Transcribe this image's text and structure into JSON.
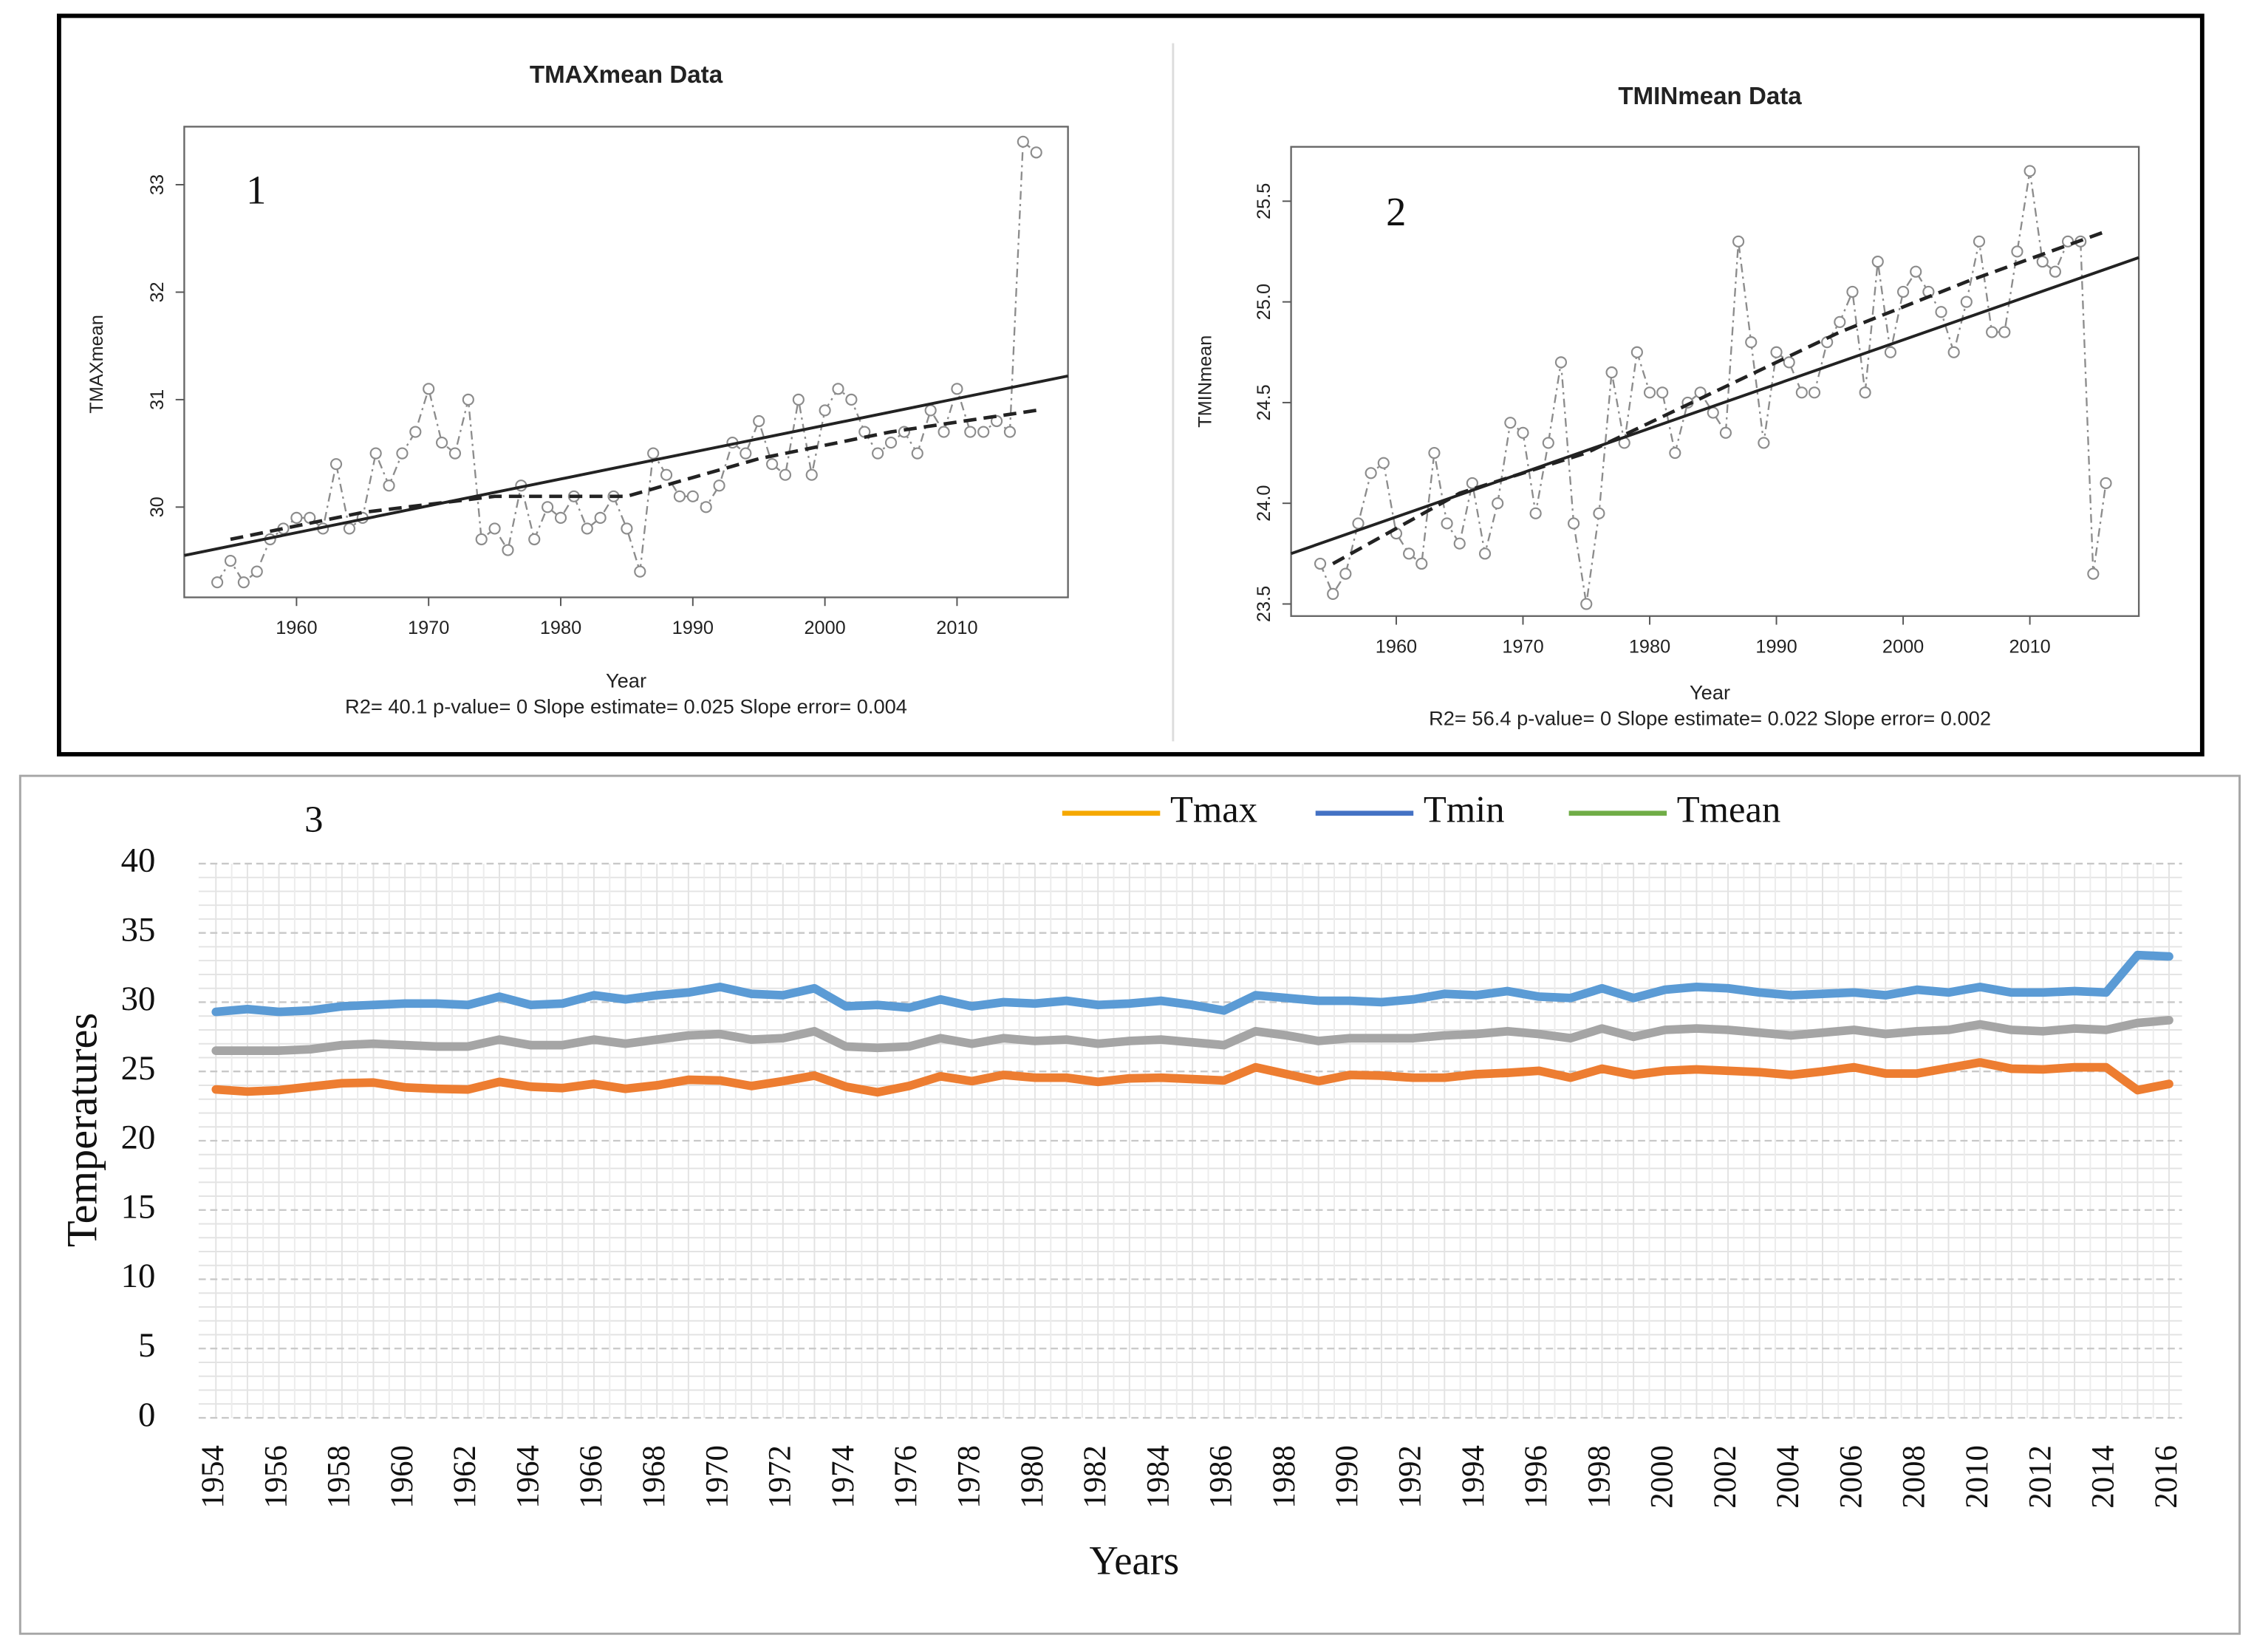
{
  "chart_data": [
    {
      "type": "line",
      "markers": true,
      "title": "TMAXmean   Data",
      "panel_label": "1",
      "xlabel": "Year",
      "ylabel": "TMAXmean",
      "stats": "R2= 40.1  p-value= 0  Slope estimate= 0.025  Slope error= 0.004",
      "x": [
        1954,
        1955,
        1956,
        1957,
        1958,
        1959,
        1960,
        1961,
        1962,
        1963,
        1964,
        1965,
        1966,
        1967,
        1968,
        1969,
        1970,
        1971,
        1972,
        1973,
        1974,
        1975,
        1976,
        1977,
        1978,
        1979,
        1980,
        1981,
        1982,
        1983,
        1984,
        1985,
        1986,
        1987,
        1988,
        1989,
        1990,
        1991,
        1992,
        1993,
        1994,
        1995,
        1996,
        1997,
        1998,
        1999,
        2000,
        2001,
        2002,
        2003,
        2004,
        2005,
        2006,
        2007,
        2008,
        2009,
        2010,
        2011,
        2012,
        2013,
        2014,
        2015,
        2016
      ],
      "values": [
        29.3,
        29.5,
        29.3,
        29.4,
        29.7,
        29.8,
        29.9,
        29.9,
        29.8,
        30.4,
        29.8,
        29.9,
        30.5,
        30.2,
        30.5,
        30.7,
        31.1,
        30.6,
        30.5,
        31.0,
        29.7,
        29.8,
        29.6,
        30.2,
        29.7,
        30.0,
        29.9,
        30.1,
        29.8,
        29.9,
        30.1,
        29.8,
        29.4,
        30.5,
        30.3,
        30.1,
        30.1,
        30.0,
        30.2,
        30.6,
        30.5,
        30.8,
        30.4,
        30.3,
        31.0,
        30.3,
        30.9,
        31.1,
        31.0,
        30.7,
        30.5,
        30.6,
        30.7,
        30.5,
        30.9,
        30.7,
        31.1,
        30.7,
        30.7,
        30.8,
        30.7,
        33.4,
        33.3
      ],
      "color": "#8c8c8c",
      "fit_lines": [
        {
          "style": "solid",
          "color": "#222222",
          "x": [
            1951.5,
            2018.4
          ],
          "values": [
            29.55,
            31.22
          ]
        },
        {
          "style": "dashed",
          "color": "#222222",
          "x": [
            1955,
            1965,
            1975,
            1985,
            1995,
            2005,
            2016
          ],
          "values": [
            29.7,
            29.95,
            30.1,
            30.1,
            30.45,
            30.7,
            30.9
          ]
        }
      ],
      "xlim": [
        1951.5,
        2018.4
      ],
      "xticks": [
        1960,
        1970,
        1980,
        1990,
        2000,
        2010
      ],
      "ylim": [
        29.16,
        33.54
      ],
      "yticks": [
        30,
        31,
        32,
        33
      ],
      "grid": false
    },
    {
      "type": "line",
      "markers": true,
      "title": "TMINmean   Data",
      "panel_label": "2",
      "xlabel": "Year",
      "ylabel": "TMINmean",
      "stats": "R2= 56.4  p-value= 0  Slope estimate= 0.022  Slope error= 0.002",
      "x": [
        1954,
        1955,
        1956,
        1957,
        1958,
        1959,
        1960,
        1961,
        1962,
        1963,
        1964,
        1965,
        1966,
        1967,
        1968,
        1969,
        1970,
        1971,
        1972,
        1973,
        1974,
        1975,
        1976,
        1977,
        1978,
        1979,
        1980,
        1981,
        1982,
        1983,
        1984,
        1985,
        1986,
        1987,
        1988,
        1989,
        1990,
        1991,
        1992,
        1993,
        1994,
        1995,
        1996,
        1997,
        1998,
        1999,
        2000,
        2001,
        2002,
        2003,
        2004,
        2005,
        2006,
        2007,
        2008,
        2009,
        2010,
        2011,
        2012,
        2013,
        2014,
        2015,
        2016
      ],
      "values": [
        23.7,
        23.55,
        23.65,
        23.9,
        24.15,
        24.2,
        23.85,
        23.75,
        23.7,
        24.25,
        23.9,
        23.8,
        24.1,
        23.75,
        24.0,
        24.4,
        24.35,
        23.95,
        24.3,
        24.7,
        23.9,
        23.5,
        23.95,
        24.65,
        24.3,
        24.75,
        24.55,
        24.55,
        24.25,
        24.5,
        24.55,
        24.45,
        24.35,
        25.3,
        24.8,
        24.3,
        24.75,
        24.7,
        24.55,
        24.55,
        24.8,
        24.9,
        25.05,
        24.55,
        25.2,
        24.75,
        25.05,
        25.15,
        25.05,
        24.95,
        24.75,
        25.0,
        25.3,
        24.85,
        24.85,
        25.25,
        25.65,
        25.2,
        25.15,
        25.3,
        25.3,
        23.65,
        24.1
      ],
      "color": "#8c8c8c",
      "fit_lines": [
        {
          "style": "solid",
          "color": "#222222",
          "x": [
            1951.7,
            2018.6
          ],
          "values": [
            23.75,
            25.22
          ]
        },
        {
          "style": "dashed",
          "color": "#222222",
          "x": [
            1955,
            1965,
            1975,
            1985,
            1995,
            2005,
            2016
          ],
          "values": [
            23.7,
            24.05,
            24.25,
            24.55,
            24.85,
            25.1,
            25.35
          ]
        }
      ],
      "xlim": [
        1951.7,
        2018.6
      ],
      "xticks": [
        1960,
        1970,
        1980,
        1990,
        2000,
        2010
      ],
      "ylim": [
        23.44,
        25.77
      ],
      "yticks": [
        23.5,
        {
          "value": 24,
          "label": "24.0"
        },
        24.5,
        {
          "value": 25,
          "label": "25.0"
        },
        25.5
      ],
      "grid": false
    },
    {
      "type": "line",
      "markers": false,
      "panel_label": "3",
      "xlabel": "Years",
      "ylabel": "Temperatures",
      "categories": [
        "1954",
        null,
        "1956",
        null,
        "1958",
        null,
        "1960",
        null,
        "1962",
        null,
        "1964",
        null,
        "1966",
        null,
        "1968",
        null,
        "1970",
        null,
        "1972",
        null,
        "1974",
        null,
        "1976",
        null,
        "1978",
        null,
        "1980",
        null,
        "1982",
        null,
        "1984",
        null,
        "1986",
        null,
        "1988",
        null,
        "1990",
        null,
        "1992",
        null,
        "1994",
        null,
        "1996",
        null,
        "1998",
        null,
        "2000",
        null,
        "2002",
        null,
        "2004",
        null,
        "2006",
        null,
        "2008",
        null,
        "2010",
        null,
        "2012",
        null,
        "2014",
        null,
        "2016"
      ],
      "series": [
        {
          "name": "Tmax",
          "color": "#5b9bd5",
          "legend_color": "#f5a800",
          "values": [
            29.3,
            29.5,
            29.3,
            29.4,
            29.7,
            29.8,
            29.9,
            29.9,
            29.8,
            30.4,
            29.8,
            29.9,
            30.5,
            30.2,
            30.5,
            30.7,
            31.1,
            30.6,
            30.5,
            31.0,
            29.7,
            29.8,
            29.6,
            30.2,
            29.7,
            30.0,
            29.9,
            30.1,
            29.8,
            29.9,
            30.1,
            29.8,
            29.4,
            30.5,
            30.3,
            30.1,
            30.1,
            30.0,
            30.2,
            30.6,
            30.5,
            30.8,
            30.4,
            30.3,
            31.0,
            30.3,
            30.9,
            31.1,
            31.0,
            30.7,
            30.5,
            30.6,
            30.7,
            30.5,
            30.9,
            30.7,
            31.1,
            30.7,
            30.7,
            30.8,
            30.7,
            33.4,
            33.3
          ]
        },
        {
          "name": "Tmin",
          "color": "#ed7d31",
          "legend_color": "#4472c4",
          "values": [
            23.7,
            23.55,
            23.65,
            23.9,
            24.15,
            24.2,
            23.85,
            23.75,
            23.7,
            24.25,
            23.9,
            23.8,
            24.1,
            23.75,
            24.0,
            24.4,
            24.35,
            23.95,
            24.3,
            24.7,
            23.9,
            23.5,
            23.95,
            24.65,
            24.3,
            24.75,
            24.55,
            24.55,
            24.25,
            24.5,
            24.55,
            24.45,
            24.35,
            25.3,
            24.8,
            24.3,
            24.75,
            24.7,
            24.55,
            24.55,
            24.8,
            24.9,
            25.05,
            24.55,
            25.2,
            24.75,
            25.05,
            25.15,
            25.05,
            24.95,
            24.75,
            25.0,
            25.3,
            24.85,
            24.85,
            25.25,
            25.65,
            25.2,
            25.15,
            25.3,
            25.3,
            23.65,
            24.1
          ]
        },
        {
          "name": "Tmean",
          "color": "#a5a5a5",
          "legend_color": "#70ad47",
          "values": [
            26.5,
            26.5,
            26.5,
            26.6,
            26.9,
            27.0,
            26.9,
            26.8,
            26.8,
            27.3,
            26.9,
            26.9,
            27.3,
            27.0,
            27.3,
            27.6,
            27.7,
            27.3,
            27.4,
            27.9,
            26.8,
            26.7,
            26.8,
            27.4,
            27.0,
            27.4,
            27.2,
            27.3,
            27.0,
            27.2,
            27.3,
            27.1,
            26.9,
            27.9,
            27.6,
            27.2,
            27.4,
            27.4,
            27.4,
            27.6,
            27.7,
            27.9,
            27.7,
            27.4,
            28.1,
            27.5,
            28.0,
            28.1,
            28.0,
            27.8,
            27.6,
            27.8,
            28.0,
            27.7,
            27.9,
            28.0,
            28.4,
            28.0,
            27.9,
            28.1,
            28.0,
            28.5,
            28.7
          ]
        }
      ],
      "ylim": [
        0,
        40
      ],
      "yticks": [
        0,
        5,
        10,
        15,
        20,
        25,
        30,
        35,
        40
      ],
      "grid": true,
      "legend": "top"
    }
  ]
}
